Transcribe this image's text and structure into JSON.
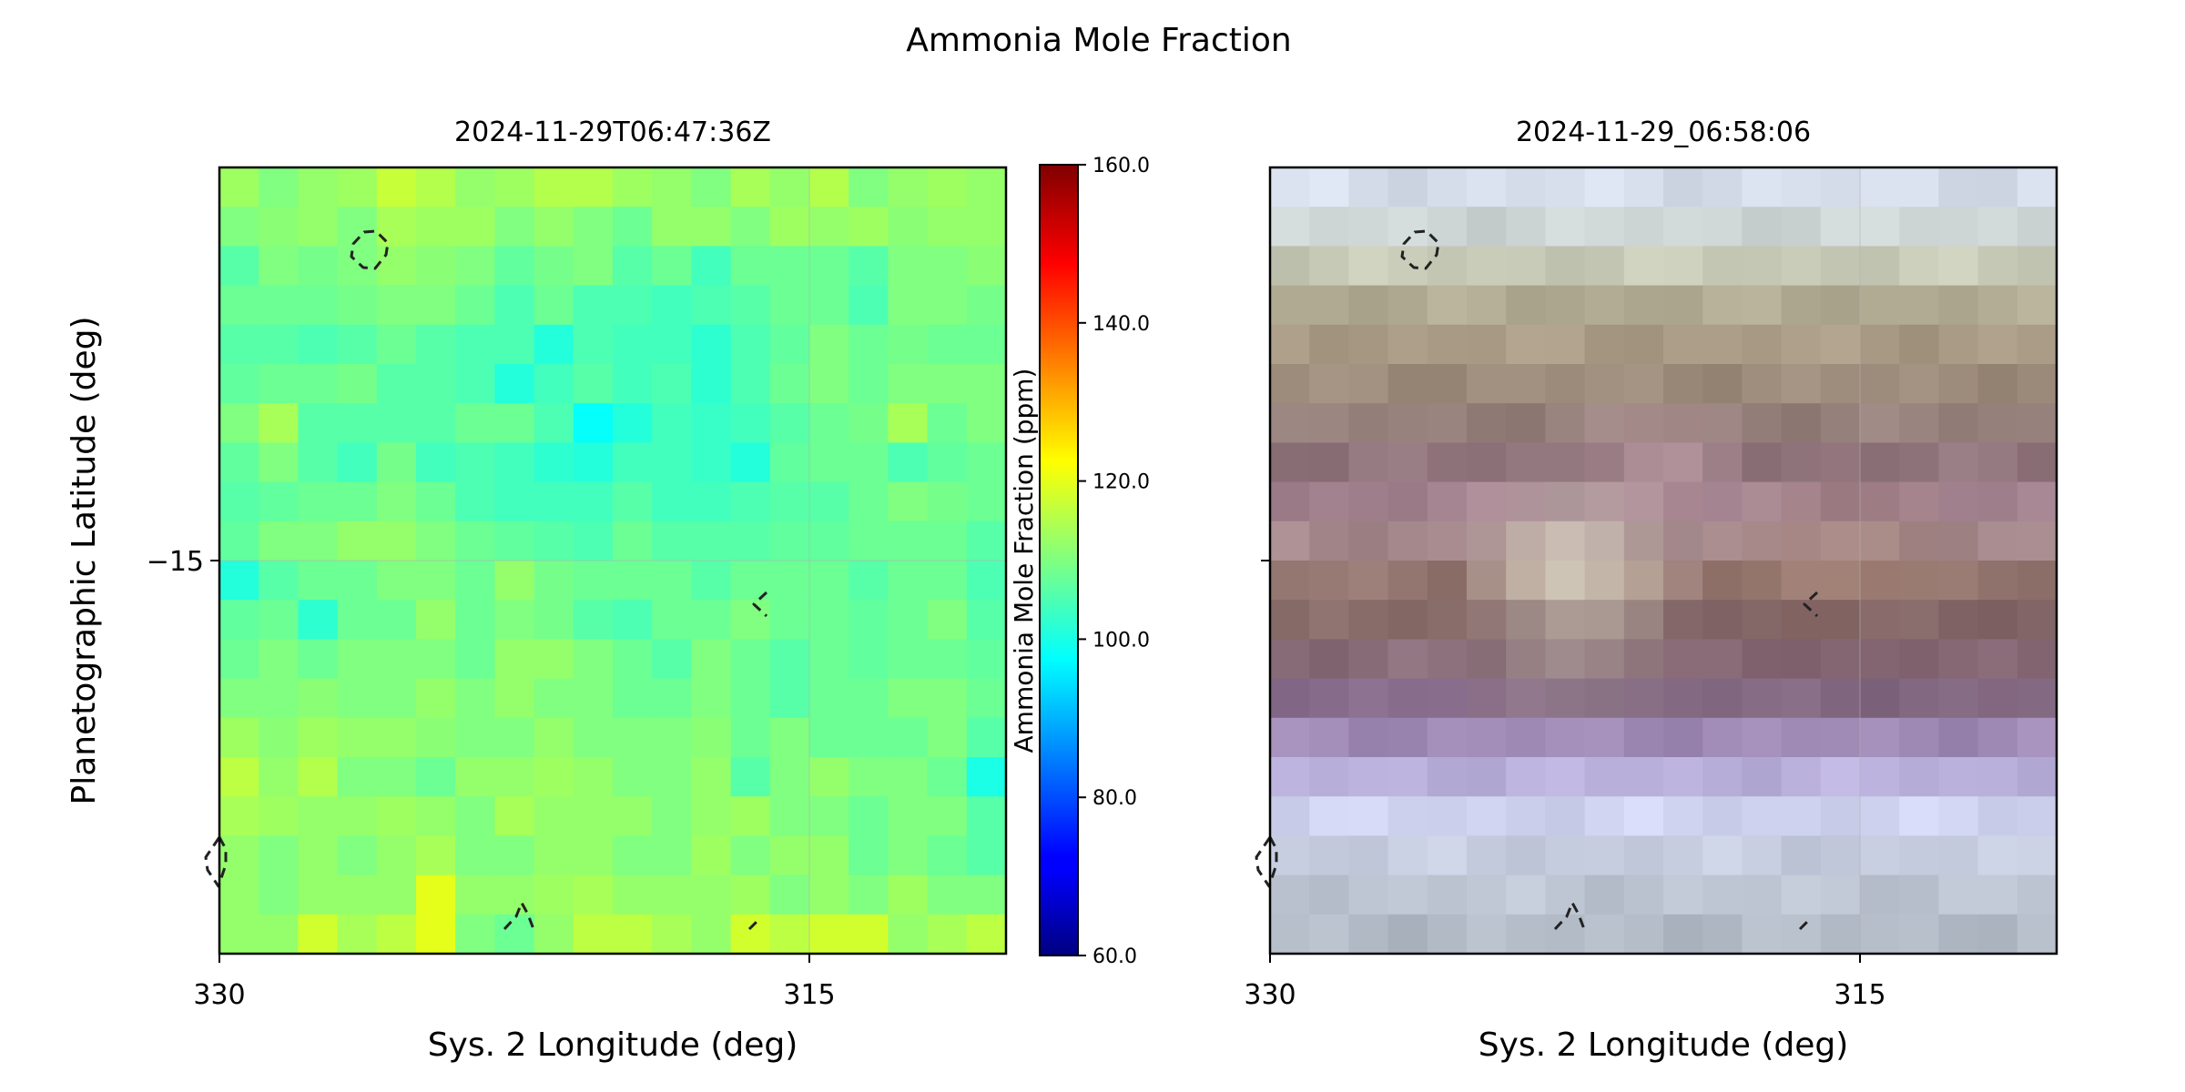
{
  "figure": {
    "title": "Ammonia Mole Fraction"
  },
  "chart_data": [
    {
      "type": "heatmap",
      "title": "2024-11-29T06:47:36Z",
      "xlabel": "Sys. 2 Longitude (deg)",
      "ylabel": "Planetographic Latitude (deg)",
      "xlim": [
        330,
        310
      ],
      "ylim": [
        -25,
        -5
      ],
      "xticks": [
        330,
        315
      ],
      "xtick_labels": [
        "330",
        "315"
      ],
      "yticks": [
        -15
      ],
      "ytick_labels": [
        "−15"
      ],
      "grid": true,
      "colorbar": {
        "label": "Ammonia Mole Fraction (ppm)",
        "range": [
          60,
          160
        ],
        "ticks": [
          60,
          80,
          100,
          120,
          140,
          160
        ],
        "tick_labels": [
          "60.0",
          "80.0",
          "100.0",
          "120.0",
          "140.0",
          "160.0"
        ],
        "colormap": "jet"
      },
      "grid_shape": [
        20,
        20
      ],
      "values_ppm": [
        [
          113,
          110,
          112,
          113,
          117,
          115,
          112,
          113,
          115,
          115,
          113,
          112,
          110,
          114,
          112,
          115,
          110,
          112,
          113,
          112
        ],
        [
          110,
          111,
          112,
          110,
          114,
          113,
          113,
          110,
          112,
          110,
          108,
          112,
          112,
          110,
          113,
          112,
          113,
          111,
          112,
          112
        ],
        [
          106,
          110,
          109,
          110,
          112,
          111,
          110,
          107,
          109,
          110,
          106,
          108,
          104,
          108,
          108,
          108,
          106,
          110,
          110,
          111
        ],
        [
          108,
          108,
          108,
          109,
          110,
          110,
          108,
          105,
          108,
          105,
          105,
          104,
          105,
          106,
          108,
          108,
          105,
          110,
          110,
          109
        ],
        [
          106,
          106,
          105,
          106,
          108,
          106,
          105,
          105,
          101,
          105,
          104,
          104,
          102,
          105,
          107,
          110,
          108,
          109,
          108,
          108
        ],
        [
          107,
          108,
          108,
          109,
          106,
          106,
          105,
          101,
          104,
          106,
          104,
          105,
          102,
          105,
          108,
          110,
          108,
          110,
          110,
          110
        ],
        [
          110,
          114,
          106,
          106,
          106,
          106,
          108,
          108,
          105,
          98,
          101,
          104,
          103,
          104,
          106,
          108,
          109,
          114,
          108,
          110
        ],
        [
          107,
          110,
          106,
          104,
          109,
          104,
          105,
          104,
          102,
          101,
          104,
          104,
          103,
          101,
          107,
          108,
          108,
          105,
          107,
          108
        ],
        [
          106,
          107,
          108,
          108,
          110,
          108,
          105,
          104,
          104,
          104,
          106,
          104,
          104,
          105,
          106,
          106,
          108,
          110,
          109,
          108
        ],
        [
          107,
          110,
          110,
          112,
          112,
          110,
          108,
          107,
          106,
          105,
          108,
          106,
          106,
          106,
          107,
          107,
          108,
          108,
          108,
          106
        ],
        [
          101,
          106,
          108,
          108,
          110,
          110,
          108,
          112,
          109,
          108,
          108,
          108,
          106,
          108,
          108,
          108,
          106,
          108,
          108,
          105
        ],
        [
          107,
          108,
          102,
          108,
          108,
          112,
          108,
          110,
          109,
          106,
          105,
          108,
          108,
          110,
          108,
          108,
          107,
          108,
          110,
          106
        ],
        [
          108,
          110,
          108,
          110,
          110,
          110,
          108,
          112,
          112,
          110,
          108,
          106,
          110,
          108,
          106,
          108,
          107,
          108,
          108,
          107
        ],
        [
          110,
          110,
          111,
          110,
          110,
          112,
          110,
          112,
          110,
          110,
          108,
          108,
          110,
          108,
          106,
          108,
          108,
          110,
          110,
          108
        ],
        [
          113,
          111,
          113,
          112,
          112,
          111,
          110,
          110,
          112,
          110,
          110,
          110,
          111,
          108,
          110,
          108,
          108,
          108,
          110,
          106
        ],
        [
          116,
          112,
          115,
          110,
          110,
          108,
          112,
          112,
          113,
          112,
          110,
          110,
          112,
          106,
          110,
          112,
          110,
          110,
          108,
          100
        ],
        [
          114,
          113,
          112,
          112,
          113,
          112,
          110,
          114,
          112,
          112,
          112,
          110,
          112,
          113,
          110,
          110,
          108,
          110,
          110,
          106
        ],
        [
          112,
          110,
          112,
          110,
          112,
          114,
          110,
          110,
          112,
          112,
          110,
          110,
          113,
          110,
          112,
          112,
          108,
          110,
          108,
          106
        ],
        [
          112,
          110,
          112,
          112,
          112,
          120,
          112,
          112,
          113,
          114,
          112,
          112,
          112,
          113,
          110,
          112,
          110,
          113,
          110,
          110
        ],
        [
          112,
          112,
          118,
          114,
          116,
          120,
          110,
          108,
          112,
          116,
          116,
          114,
          112,
          118,
          116,
          118,
          118,
          112,
          114,
          116
        ]
      ],
      "contour_style": "dashed"
    },
    {
      "type": "heatmap",
      "title": "2024-11-29_06:58:06",
      "xlabel": "Sys. 2 Longitude (deg)",
      "xlim": [
        330,
        310
      ],
      "ylim": [
        -25,
        -5
      ],
      "xticks": [
        330,
        315
      ],
      "xtick_labels": [
        "330",
        "315"
      ],
      "yticks": [
        -15
      ],
      "ytick_labels": [
        ""
      ],
      "grid": true,
      "content": "true-color image",
      "contour_style": "dashed"
    }
  ]
}
